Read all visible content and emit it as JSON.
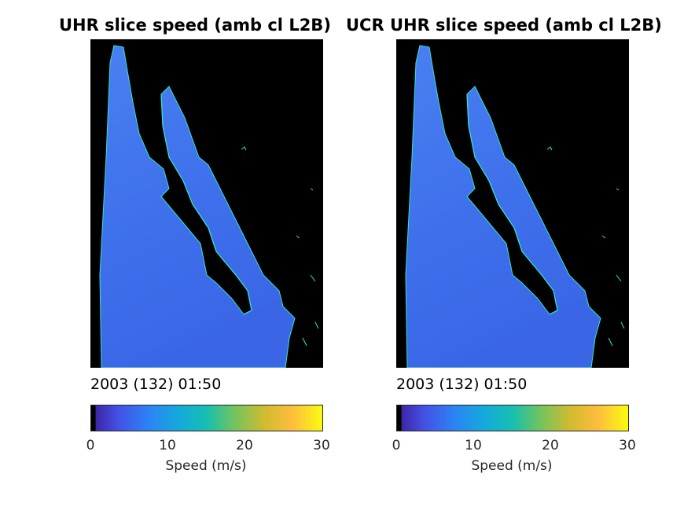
{
  "panels": [
    {
      "title": "UHR slice speed (amb cl L2B)",
      "timestamp": "2003 (132) 01:50",
      "colorbar": {
        "ticks": [
          "0",
          "10",
          "20",
          "30"
        ],
        "label": "Speed (m/s)",
        "range": [
          0,
          30
        ]
      }
    },
    {
      "title": "UCR UHR slice speed (amb cl L2B)",
      "timestamp": "2003 (132) 01:50",
      "colorbar": {
        "ticks": [
          "0",
          "10",
          "20",
          "30"
        ],
        "label": "Speed (m/s)",
        "range": [
          0,
          30
        ]
      }
    }
  ],
  "colors": {
    "land": "#000000",
    "ocean": "#3f74ee",
    "coastline": "#2ee6d6",
    "colormap": [
      "#171a8a",
      "#3e26a8",
      "#4352e6",
      "#2b84f4",
      "#14aadb",
      "#17bfb0",
      "#72c45e",
      "#d1bb2e",
      "#fdbd3d",
      "#f5e326",
      "#f9fb0e"
    ]
  }
}
